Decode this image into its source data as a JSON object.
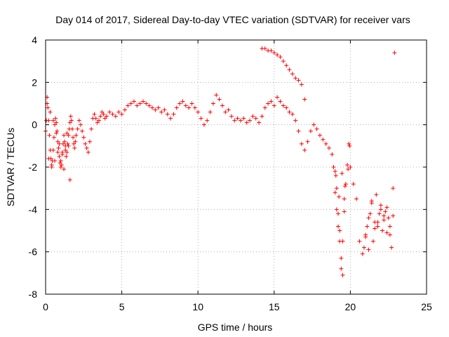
{
  "chart_data": {
    "type": "scatter",
    "title": "Day 014 of 2017, Sidereal Day-to-day VTEC variation (SDTVAR) for receiver vars",
    "xlabel": "GPS time / hours",
    "ylabel": "SDTVAR / TECUs",
    "xlim": [
      0,
      25
    ],
    "ylim": [
      -8,
      4
    ],
    "xticks": [
      0,
      5,
      10,
      15,
      20,
      25
    ],
    "yticks": [
      -8,
      -6,
      -4,
      -2,
      0,
      2,
      4
    ],
    "grid": true,
    "marker": "+",
    "color": "#ff0000",
    "series": [
      {
        "name": "SDTVAR",
        "x": [
          0.0,
          0.05,
          0.1,
          0.15,
          0.2,
          0.25,
          0.3,
          0.35,
          0.4,
          0.45,
          0.5,
          0.55,
          0.6,
          0.65,
          0.7,
          0.75,
          0.8,
          0.85,
          0.9,
          0.95,
          1.0,
          1.05,
          1.1,
          1.15,
          1.2,
          1.25,
          1.3,
          1.35,
          1.4,
          1.45,
          1.5,
          1.55,
          1.6,
          1.65,
          1.7,
          1.75,
          1.8,
          1.85,
          1.9,
          1.95,
          2.0,
          2.1,
          2.2,
          2.3,
          2.4,
          2.5,
          2.6,
          2.7,
          2.8,
          2.9,
          3.0,
          3.1,
          3.2,
          3.3,
          3.4,
          3.5,
          3.6,
          3.7,
          3.8,
          3.9,
          4.0,
          4.2,
          4.4,
          4.6,
          4.8,
          5.0,
          5.2,
          5.4,
          5.6,
          5.8,
          6.0,
          6.2,
          6.4,
          6.6,
          6.8,
          7.0,
          7.2,
          7.4,
          7.6,
          7.8,
          8.0,
          8.2,
          8.4,
          8.6,
          8.8,
          9.0,
          9.2,
          9.4,
          9.6,
          9.8,
          10.0,
          10.2,
          10.4,
          10.6,
          10.8,
          11.0,
          11.2,
          11.4,
          11.6,
          11.8,
          12.0,
          12.2,
          12.4,
          12.6,
          12.8,
          13.0,
          13.2,
          13.4,
          13.6,
          13.8,
          14.0,
          14.2,
          14.4,
          14.6,
          14.8,
          15.0,
          15.2,
          15.4,
          15.6,
          15.8,
          16.0,
          16.2,
          16.4,
          16.6,
          16.8,
          17.0,
          17.2,
          17.4,
          17.6,
          17.8,
          18.0,
          18.2,
          18.4,
          18.6,
          18.8,
          19.0,
          19.1,
          19.2,
          19.3,
          19.4,
          19.5,
          19.6,
          19.7,
          19.8,
          19.9,
          20.0,
          20.2,
          20.4,
          20.6,
          20.8,
          20.9,
          21.0,
          21.1,
          21.2,
          21.3,
          21.4,
          21.5,
          21.6,
          21.7,
          21.8,
          21.9,
          22.0,
          22.1,
          22.2,
          22.3,
          22.4,
          22.5,
          22.6,
          22.7,
          22.8,
          22.9,
          14.2,
          14.4,
          14.6,
          14.8,
          15.0,
          15.2,
          15.4,
          15.6,
          15.8,
          16.0,
          16.2,
          16.4,
          16.6,
          16.8,
          17.0,
          0.1,
          0.3,
          0.5,
          0.7,
          0.9,
          1.1,
          1.3,
          1.5,
          0.2,
          0.4,
          0.6,
          0.8,
          1.0,
          1.2,
          1.4,
          1.6,
          19.0,
          19.1,
          19.2,
          19.3,
          19.4,
          19.5,
          19.6,
          21.0,
          21.2,
          21.4,
          21.6,
          21.8,
          22.0,
          22.2,
          22.4,
          22.6,
          22.8,
          18.9,
          19.05,
          19.25,
          19.45,
          19.65,
          19.85,
          19.95
        ],
        "y": [
          -0.3,
          0.2,
          1.3,
          0.8,
          0.2,
          -0.5,
          -1.2,
          -1.6,
          -1.9,
          -1.7,
          -1.2,
          -0.6,
          0.0,
          0.3,
          0.1,
          -0.3,
          -0.8,
          -1.1,
          -1.5,
          -1.8,
          -2.0,
          -1.9,
          -1.4,
          -0.9,
          -0.5,
          -0.8,
          -1.2,
          -1.5,
          -1.3,
          -0.9,
          -0.5,
          -0.2,
          0.1,
          0.4,
          0.2,
          -0.2,
          -0.6,
          -0.9,
          -1.1,
          -0.8,
          -0.5,
          -0.2,
          0.2,
          0.0,
          -0.3,
          -0.6,
          -0.9,
          -1.1,
          -1.3,
          -0.8,
          -0.2,
          0.3,
          0.5,
          0.3,
          0.1,
          0.2,
          0.4,
          0.6,
          0.5,
          0.3,
          0.4,
          0.6,
          0.5,
          0.4,
          0.6,
          0.5,
          0.7,
          0.9,
          1.0,
          1.1,
          0.9,
          1.0,
          1.1,
          1.0,
          0.9,
          0.8,
          0.7,
          0.8,
          0.6,
          0.7,
          0.5,
          0.3,
          0.5,
          0.8,
          1.0,
          1.1,
          0.9,
          0.8,
          1.0,
          0.8,
          0.6,
          0.3,
          0.0,
          0.2,
          0.6,
          1.0,
          1.4,
          1.2,
          0.9,
          0.6,
          0.7,
          0.4,
          0.2,
          0.3,
          0.2,
          0.3,
          0.1,
          0.2,
          0.4,
          0.3,
          0.1,
          0.4,
          0.8,
          1.0,
          1.1,
          0.9,
          1.3,
          1.1,
          0.9,
          0.8,
          0.6,
          0.5,
          0.2,
          -0.3,
          -0.9,
          -1.2,
          -0.8,
          -0.3,
          0.0,
          -0.2,
          -0.5,
          -0.7,
          -0.9,
          -1.1,
          -1.4,
          -2.2,
          -3.0,
          -4.2,
          -5.0,
          -6.8,
          -5.5,
          -3.5,
          -2.8,
          -1.9,
          -0.9,
          -2.0,
          -2.8,
          -3.5,
          -5.5,
          -6.1,
          -5.8,
          -5.3,
          -4.8,
          -5.9,
          -4.2,
          -3.6,
          -5.5,
          -4.6,
          -3.3,
          -4.8,
          -4.2,
          -3.8,
          -5.0,
          -4.3,
          -4.1,
          -3.9,
          -4.4,
          -5.2,
          -5.8,
          -3.0,
          3.4,
          3.6,
          3.6,
          3.5,
          3.5,
          3.4,
          3.3,
          3.2,
          3.0,
          2.8,
          2.6,
          2.4,
          2.2,
          2.1,
          1.9,
          1.2,
          1.0,
          0.6,
          0.2,
          -0.4,
          -0.9,
          -1.3,
          -1.0,
          -1.0,
          -1.6,
          -2.0,
          -1.7,
          -1.3,
          -1.7,
          -2.1,
          -0.4,
          -2.6,
          -3.2,
          -4.0,
          -4.8,
          -5.5,
          -6.3,
          -7.1,
          -4.1,
          -5.2,
          -4.4,
          -3.7,
          -4.9,
          -4.6,
          -4.0,
          -4.5,
          -5.1,
          -4.8,
          -4.3,
          -2.0,
          -2.4,
          -3.4,
          -2.3,
          -2.9,
          -2.1,
          -1.0
        ]
      }
    ]
  }
}
